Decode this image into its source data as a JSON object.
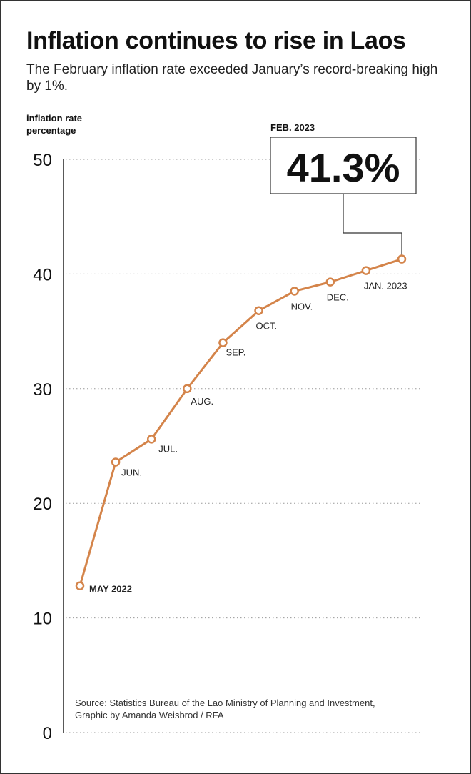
{
  "header": {
    "title": "Inflation continues to rise in Laos",
    "subtitle": "The February inflation rate exceeded January’s record-breaking high by 1%."
  },
  "yaxis_title": {
    "line1": "inflation rate",
    "line2": "percentage"
  },
  "callout": {
    "label": "FEB. 2023",
    "value": "41.3%"
  },
  "source": {
    "line1": "Source: Statistics Bureau of the Lao Ministry of Planning and Investment,",
    "line2": "Graphic by Amanda Weisbrod / RFA"
  },
  "chart_data": {
    "type": "line",
    "x": [
      "MAY 2022",
      "JUN.",
      "JUL.",
      "AUG.",
      "SEP.",
      "OCT.",
      "NOV.",
      "DEC.",
      "JAN. 2023",
      "FEB. 2023"
    ],
    "series": [
      {
        "values": [
          12.8,
          23.6,
          25.6,
          30.0,
          34.0,
          36.8,
          38.5,
          39.3,
          40.3,
          41.3
        ]
      }
    ],
    "ylim": [
      0,
      50
    ],
    "yticks": [
      0,
      10,
      20,
      30,
      40,
      50
    ],
    "grid": true,
    "colors": {
      "line": "#D4844A",
      "marker_fill": "#ffffff",
      "grid": "#999999",
      "axis": "#222222"
    }
  }
}
